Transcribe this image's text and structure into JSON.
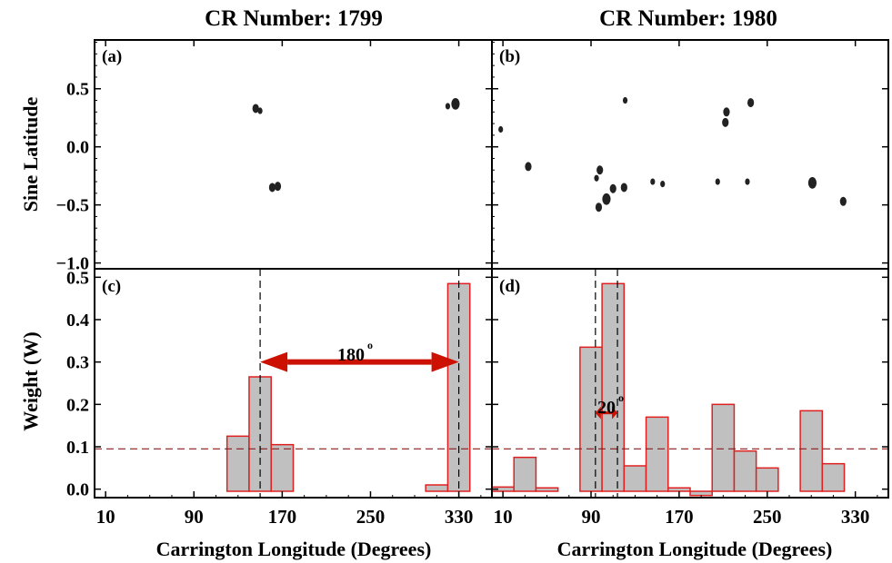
{
  "titles": {
    "left": "CR Number: 1799",
    "right": "CR Number: 1980"
  },
  "panel_labels": {
    "a": "(a)",
    "b": "(b)",
    "c": "(c)",
    "d": "(d)"
  },
  "ylabels": {
    "top": "Sine Latitude",
    "bottom": "Weight (W)"
  },
  "xlabels": {
    "left": "Carrington Longitude (Degrees)",
    "right": "Carrington Longitude (Degrees)"
  },
  "annotations": {
    "left_arrow": "180",
    "right_arrow": "20",
    "degree": "o"
  },
  "colors": {
    "bar_fill": "#c0c0c0",
    "bar_edge": "#e02020",
    "arrow": "#cc1100",
    "threshold": "#8b1a1a",
    "spots": "#222222"
  },
  "chart_data": [
    {
      "type": "scatter",
      "panel": "a",
      "title": "CR Number: 1799",
      "ylabel": "Sine Latitude",
      "xlim": [
        0,
        360
      ],
      "ylim": [
        -1.05,
        0.92
      ],
      "yticks": [
        0.5,
        0.0,
        -0.5,
        -1.0
      ],
      "ytick_labels": [
        "0.5",
        "0.0",
        "−0.5",
        "−1.0"
      ],
      "points": [
        {
          "x": 146,
          "y": 0.33,
          "size": 2
        },
        {
          "x": 150,
          "y": 0.31,
          "size": 1
        },
        {
          "x": 161,
          "y": -0.35,
          "size": 2
        },
        {
          "x": 166,
          "y": -0.34,
          "size": 2
        },
        {
          "x": 327,
          "y": 0.37,
          "size": 3
        },
        {
          "x": 320,
          "y": 0.35,
          "size": 1
        }
      ]
    },
    {
      "type": "scatter",
      "panel": "b",
      "title": "CR Number: 1980",
      "xlim": [
        0,
        360
      ],
      "ylim": [
        -1.05,
        0.92
      ],
      "points": [
        {
          "x": 8,
          "y": 0.15,
          "size": 1
        },
        {
          "x": 33,
          "y": -0.17,
          "size": 2
        },
        {
          "x": 98,
          "y": -0.2,
          "size": 2
        },
        {
          "x": 95,
          "y": -0.27,
          "size": 1
        },
        {
          "x": 110,
          "y": -0.36,
          "size": 2
        },
        {
          "x": 120,
          "y": -0.35,
          "size": 2
        },
        {
          "x": 104,
          "y": -0.45,
          "size": 3
        },
        {
          "x": 97,
          "y": -0.52,
          "size": 2
        },
        {
          "x": 146,
          "y": -0.3,
          "size": 1
        },
        {
          "x": 155,
          "y": -0.32,
          "size": 1
        },
        {
          "x": 121,
          "y": 0.4,
          "size": 1
        },
        {
          "x": 213,
          "y": 0.3,
          "size": 2
        },
        {
          "x": 212,
          "y": 0.21,
          "size": 2
        },
        {
          "x": 235,
          "y": 0.38,
          "size": 2
        },
        {
          "x": 232,
          "y": -0.3,
          "size": 1
        },
        {
          "x": 291,
          "y": -0.31,
          "size": 3
        },
        {
          "x": 319,
          "y": -0.47,
          "size": 2
        },
        {
          "x": 205,
          "y": -0.3,
          "size": 1
        }
      ]
    },
    {
      "type": "bar",
      "panel": "c",
      "xlabel": "Carrington Longitude (Degrees)",
      "ylabel": "Weight (W)",
      "xlim": [
        0,
        360
      ],
      "ylim": [
        -0.02,
        0.52
      ],
      "bin_width": 20,
      "xticks": [
        10,
        90,
        170,
        250,
        330
      ],
      "yticks": [
        0.0,
        0.1,
        0.2,
        0.3,
        0.4,
        0.5
      ],
      "ytick_labels": [
        "0.0",
        "0.1",
        "0.2",
        "0.3",
        "0.4",
        "0.5"
      ],
      "bins": [
        {
          "x": 130,
          "value": 0.125
        },
        {
          "x": 150,
          "value": 0.265
        },
        {
          "x": 170,
          "value": 0.105
        },
        {
          "x": 310,
          "value": 0.01
        },
        {
          "x": 330,
          "value": 0.485
        }
      ],
      "threshold": 0.095,
      "vlines": [
        150,
        330
      ],
      "arrow": {
        "from": 150,
        "to": 330,
        "y": 0.3,
        "label": "180"
      }
    },
    {
      "type": "bar",
      "panel": "d",
      "xlabel": "Carrington Longitude (Degrees)",
      "xlim": [
        0,
        360
      ],
      "ylim": [
        -0.02,
        0.52
      ],
      "bin_width": 20,
      "xticks": [
        10,
        90,
        170,
        250,
        330
      ],
      "bins": [
        {
          "x": 10,
          "value": 0.005
        },
        {
          "x": 30,
          "value": 0.075
        },
        {
          "x": 50,
          "value": 0.003
        },
        {
          "x": 90,
          "value": 0.335
        },
        {
          "x": 110,
          "value": 0.485
        },
        {
          "x": 130,
          "value": 0.055
        },
        {
          "x": 150,
          "value": 0.17
        },
        {
          "x": 170,
          "value": 0.003
        },
        {
          "x": 190,
          "value": -0.005
        },
        {
          "x": 210,
          "value": 0.2
        },
        {
          "x": 230,
          "value": 0.09
        },
        {
          "x": 250,
          "value": 0.05
        },
        {
          "x": 290,
          "value": 0.185
        },
        {
          "x": 310,
          "value": 0.06
        }
      ],
      "threshold": 0.095,
      "vlines": [
        94,
        114
      ],
      "arrow": {
        "from": 94,
        "to": 114,
        "y": 0.18,
        "label": "20"
      }
    }
  ]
}
